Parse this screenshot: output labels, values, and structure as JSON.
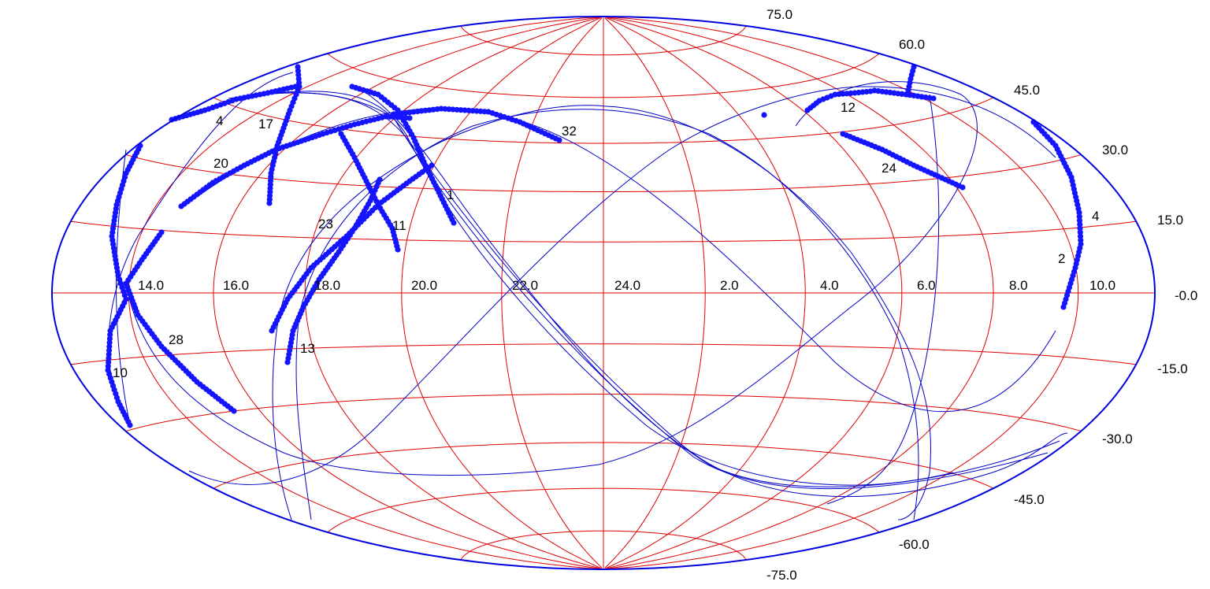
{
  "chart_data": {
    "type": "scatter",
    "projection": "hammer-aitoff",
    "ra_grid_hours": [
      10,
      8,
      6,
      4,
      2,
      24,
      22,
      20,
      18,
      16,
      14
    ],
    "ra_labels": [
      "10.0",
      "8.0",
      "6.0",
      "4.0",
      "2.0",
      "24.0",
      "22.0",
      "20.0",
      "18.0",
      "16.0",
      "14.0"
    ],
    "dec_grid_degrees": [
      75,
      60,
      45,
      30,
      15,
      0,
      -15,
      -30,
      -45,
      -60,
      -75
    ],
    "dec_labels": [
      "75.0",
      "60.0",
      "45.0",
      "30.0",
      "15.0",
      "-0.0",
      "-15.0",
      "-30.0",
      "-45.0",
      "-60.0",
      "-75.0"
    ],
    "track_labels": [
      "1",
      "2",
      "4",
      "4",
      "10",
      "11",
      "12",
      "13",
      "17",
      "20",
      "23",
      "24",
      "28",
      "32"
    ],
    "grid_color": "#e00000",
    "track_color": "#0000c8",
    "point_color": "#1414ff",
    "boundary_color": "#0000e0"
  }
}
